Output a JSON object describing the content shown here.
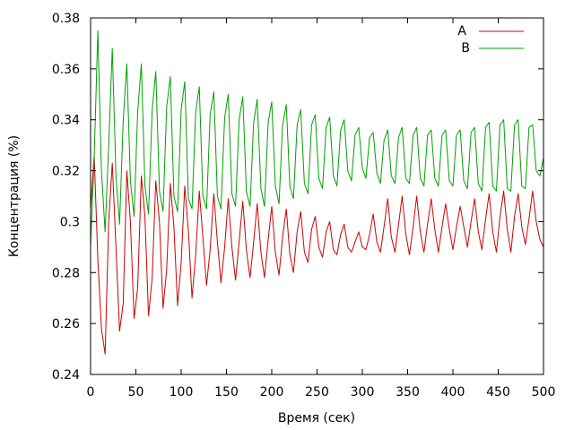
{
  "chart_data": {
    "type": "line",
    "title": "",
    "xlabel": "Время (сек)",
    "ylabel": "Концентрация (%)",
    "xlim": [
      0,
      500
    ],
    "ylim": [
      0.24,
      0.38
    ],
    "x_ticks": [
      0,
      50,
      100,
      150,
      200,
      250,
      300,
      350,
      400,
      450,
      500
    ],
    "y_ticks": [
      0.24,
      0.26,
      0.28,
      0.3,
      0.32,
      0.34,
      0.36,
      0.38
    ],
    "y_tick_labels": [
      "0.24",
      "0.26",
      "0.28",
      "0.3",
      "0.32",
      "0.34",
      "0.36",
      "0.38"
    ],
    "x_tick_labels": [
      "0",
      "50",
      "100",
      "150",
      "200",
      "250",
      "300",
      "350",
      "400",
      "450",
      "500"
    ],
    "grid": false,
    "legend_position": "top-right",
    "series": [
      {
        "name": "A",
        "color": "#cc0000",
        "x": [
          0,
          4,
          8,
          12,
          16,
          20,
          24,
          28,
          32,
          36,
          40,
          44,
          48,
          52,
          56,
          60,
          64,
          68,
          72,
          76,
          80,
          84,
          88,
          92,
          96,
          100,
          104,
          108,
          112,
          116,
          120,
          124,
          128,
          132,
          136,
          140,
          144,
          148,
          152,
          156,
          160,
          164,
          168,
          172,
          176,
          180,
          184,
          188,
          192,
          196,
          200,
          204,
          208,
          212,
          216,
          220,
          224,
          228,
          232,
          236,
          240,
          244,
          248,
          252,
          256,
          260,
          264,
          268,
          272,
          276,
          280,
          284,
          288,
          292,
          296,
          300,
          304,
          308,
          312,
          316,
          320,
          324,
          328,
          332,
          336,
          340,
          344,
          348,
          352,
          356,
          360,
          364,
          368,
          372,
          376,
          380,
          384,
          388,
          392,
          396,
          400,
          404,
          408,
          412,
          416,
          420,
          424,
          428,
          432,
          436,
          440,
          444,
          448,
          452,
          456,
          460,
          464,
          468,
          472,
          476,
          480,
          484,
          488,
          492,
          496,
          500
        ],
        "values": [
          0.305,
          0.326,
          0.285,
          0.258,
          0.248,
          0.3,
          0.323,
          0.29,
          0.257,
          0.268,
          0.32,
          0.3,
          0.262,
          0.274,
          0.318,
          0.302,
          0.263,
          0.278,
          0.316,
          0.3,
          0.266,
          0.281,
          0.315,
          0.298,
          0.267,
          0.284,
          0.314,
          0.296,
          0.27,
          0.287,
          0.312,
          0.294,
          0.275,
          0.289,
          0.311,
          0.292,
          0.276,
          0.29,
          0.309,
          0.29,
          0.277,
          0.292,
          0.308,
          0.289,
          0.278,
          0.292,
          0.307,
          0.288,
          0.278,
          0.293,
          0.306,
          0.288,
          0.279,
          0.294,
          0.305,
          0.287,
          0.28,
          0.296,
          0.304,
          0.288,
          0.284,
          0.297,
          0.302,
          0.29,
          0.286,
          0.296,
          0.3,
          0.289,
          0.287,
          0.295,
          0.299,
          0.29,
          0.288,
          0.292,
          0.296,
          0.29,
          0.289,
          0.295,
          0.303,
          0.292,
          0.288,
          0.298,
          0.309,
          0.294,
          0.288,
          0.299,
          0.31,
          0.295,
          0.287,
          0.298,
          0.31,
          0.296,
          0.288,
          0.299,
          0.309,
          0.297,
          0.288,
          0.298,
          0.307,
          0.297,
          0.289,
          0.298,
          0.306,
          0.298,
          0.29,
          0.3,
          0.309,
          0.296,
          0.289,
          0.301,
          0.311,
          0.296,
          0.288,
          0.302,
          0.312,
          0.297,
          0.288,
          0.302,
          0.311,
          0.298,
          0.291,
          0.301,
          0.312,
          0.3,
          0.293,
          0.29
        ]
      },
      {
        "name": "B",
        "color": "#00a000",
        "x": [
          0,
          4,
          8,
          12,
          16,
          20,
          24,
          28,
          32,
          36,
          40,
          44,
          48,
          52,
          56,
          60,
          64,
          68,
          72,
          76,
          80,
          84,
          88,
          92,
          96,
          100,
          104,
          108,
          112,
          116,
          120,
          124,
          128,
          132,
          136,
          140,
          144,
          148,
          152,
          156,
          160,
          164,
          168,
          172,
          176,
          180,
          184,
          188,
          192,
          196,
          200,
          204,
          208,
          212,
          216,
          220,
          224,
          228,
          232,
          236,
          240,
          244,
          248,
          252,
          256,
          260,
          264,
          268,
          272,
          276,
          280,
          284,
          288,
          292,
          296,
          300,
          304,
          308,
          312,
          316,
          320,
          324,
          328,
          332,
          336,
          340,
          344,
          348,
          352,
          356,
          360,
          364,
          368,
          372,
          376,
          380,
          384,
          388,
          392,
          396,
          400,
          404,
          408,
          412,
          416,
          420,
          424,
          428,
          432,
          436,
          440,
          444,
          448,
          452,
          456,
          460,
          464,
          468,
          472,
          476,
          480,
          484,
          488,
          492,
          496,
          500
        ],
        "values": [
          0.29,
          0.325,
          0.375,
          0.32,
          0.296,
          0.33,
          0.368,
          0.318,
          0.299,
          0.34,
          0.362,
          0.316,
          0.302,
          0.343,
          0.362,
          0.314,
          0.303,
          0.344,
          0.359,
          0.312,
          0.304,
          0.345,
          0.357,
          0.31,
          0.304,
          0.344,
          0.355,
          0.309,
          0.305,
          0.343,
          0.353,
          0.31,
          0.305,
          0.342,
          0.351,
          0.31,
          0.305,
          0.341,
          0.35,
          0.311,
          0.306,
          0.34,
          0.349,
          0.312,
          0.306,
          0.339,
          0.348,
          0.313,
          0.306,
          0.339,
          0.347,
          0.314,
          0.307,
          0.338,
          0.346,
          0.314,
          0.309,
          0.338,
          0.344,
          0.315,
          0.311,
          0.338,
          0.342,
          0.317,
          0.313,
          0.337,
          0.341,
          0.318,
          0.314,
          0.336,
          0.34,
          0.32,
          0.316,
          0.334,
          0.337,
          0.321,
          0.317,
          0.333,
          0.335,
          0.319,
          0.315,
          0.332,
          0.336,
          0.318,
          0.315,
          0.333,
          0.337,
          0.317,
          0.315,
          0.334,
          0.337,
          0.317,
          0.314,
          0.334,
          0.336,
          0.317,
          0.314,
          0.334,
          0.336,
          0.316,
          0.314,
          0.334,
          0.336,
          0.316,
          0.313,
          0.335,
          0.337,
          0.315,
          0.312,
          0.337,
          0.339,
          0.314,
          0.312,
          0.338,
          0.34,
          0.313,
          0.312,
          0.338,
          0.34,
          0.314,
          0.313,
          0.337,
          0.338,
          0.32,
          0.318,
          0.325
        ]
      }
    ]
  }
}
